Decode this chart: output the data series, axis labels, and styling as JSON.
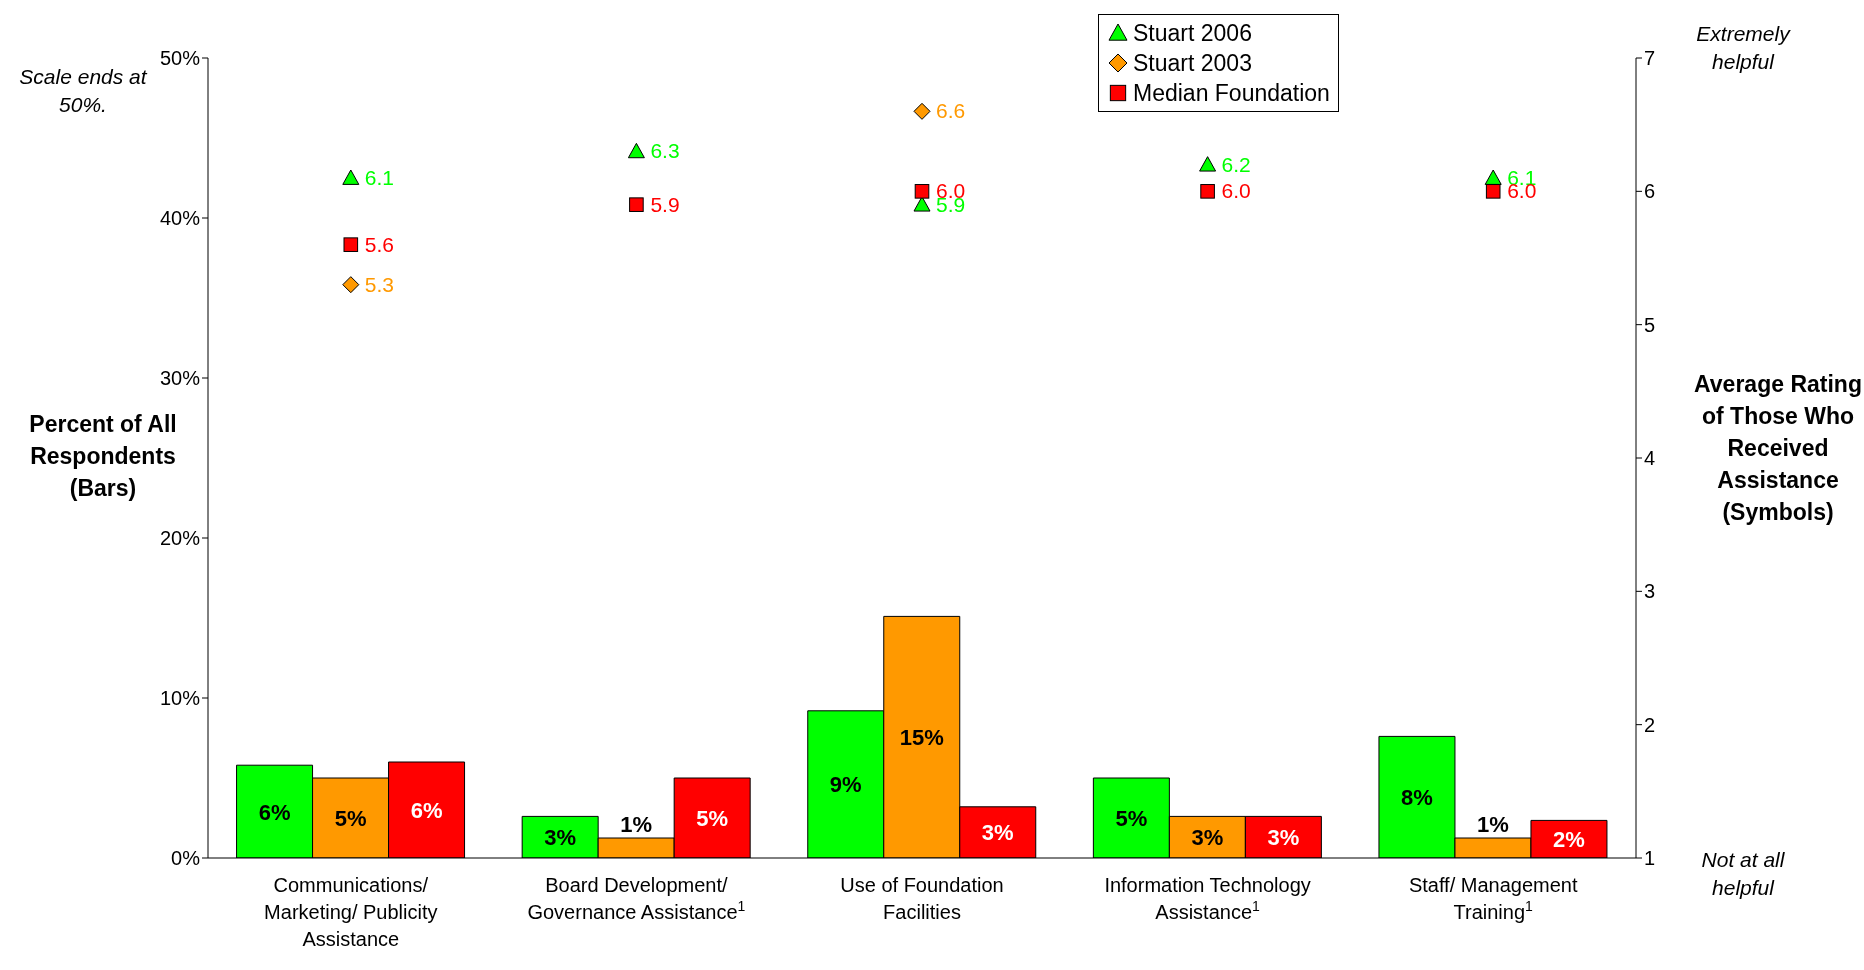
{
  "chart_data": {
    "type": "bar",
    "categories": [
      "Communications/ Marketing/ Publicity Assistance",
      "Board Development/ Governance Assistance$^{1}$",
      "Use of Foundation Facilities",
      "Information Technology Assistance$^{1}$",
      "Staff/ Management Training$^{1}$"
    ],
    "ylabel": "Percent of All Respondents (Bars)",
    "y2label": "Average Rating of Those Who Received Assistance (Symbols)",
    "ylim": [
      0,
      50
    ],
    "yticks": [
      {
        "value": 0,
        "label": "0%"
      },
      {
        "value": 10,
        "label": "10%"
      },
      {
        "value": 20,
        "label": "20%"
      },
      {
        "value": 30,
        "label": "30%"
      },
      {
        "value": 40,
        "label": "40%"
      },
      {
        "value": 50,
        "label": "50%"
      }
    ],
    "y2lim": [
      1,
      7
    ],
    "y2ticks": [
      1,
      2,
      3,
      4,
      5,
      6,
      7
    ],
    "series": [
      {
        "color": "#00ff00",
        "values": [
          5.8,
          2.6,
          9.2,
          5.0,
          7.6
        ],
        "value_labels": [
          "6%",
          "3%",
          "9%",
          "5%",
          "8%"
        ]
      },
      {
        "color": "#ff9900",
        "values": [
          5.0,
          1.25,
          15.1,
          2.6,
          1.25
        ],
        "value_labels": [
          "5%",
          "1%",
          "15%",
          "3%",
          "1%"
        ]
      },
      {
        "color": "#ff0000",
        "values": [
          6.0,
          5.0,
          3.2,
          2.6,
          2.35
        ],
        "value_labels": [
          "6%",
          "5%",
          "3%",
          "3%",
          "2%"
        ]
      },
      {
        "type": "scatter",
        "axis": "y2",
        "name": "Stuart 2006",
        "color": "#00ff00",
        "marker": "triangle",
        "values": [
          6.1,
          6.3,
          5.9,
          6.2,
          6.1
        ],
        "value_labels": [
          "6.1",
          "6.3",
          "5.9",
          "6.2",
          "6.1"
        ]
      },
      {
        "type": "scatter",
        "axis": "y2",
        "name": "Stuart 2003",
        "color": "#ff9900",
        "marker": "diamond",
        "values": [
          5.3,
          null,
          6.6,
          null,
          null
        ],
        "value_labels": [
          "5.3",
          null,
          "6.6",
          null,
          null
        ]
      },
      {
        "type": "scatter",
        "axis": "y2",
        "name": "Median Foundation",
        "color": "#ff0000",
        "marker": "square",
        "values": [
          5.6,
          5.9,
          6.0,
          6.0,
          6.0
        ],
        "value_labels": [
          "5.6",
          "5.9",
          "6.0",
          "6.0",
          "6.0"
        ]
      }
    ],
    "legend": "top",
    "grid": false,
    "annotations": [
      "Scale ends at 50%.",
      "Extremely helpful",
      "Not at all helpful"
    ]
  }
}
